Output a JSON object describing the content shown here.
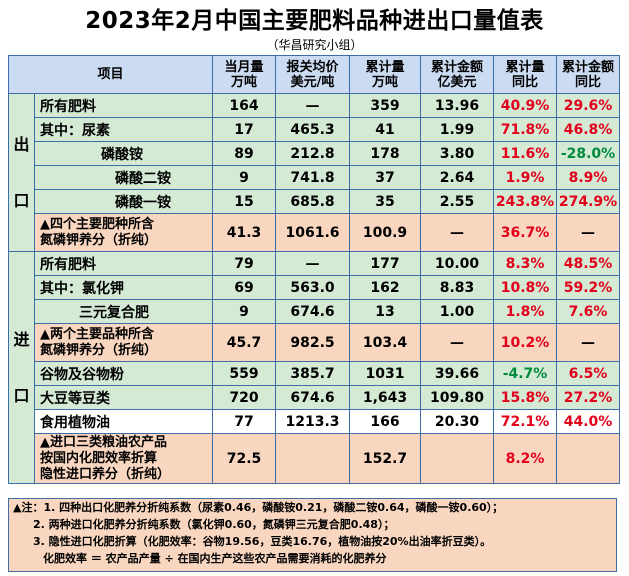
{
  "title": "2023年2月中国主要肥料品种进出口量值表",
  "subtitle": "（华昌研究小组）",
  "headers": {
    "item": "项目",
    "monthly_vol": [
      "当月量",
      "万吨"
    ],
    "price": [
      "报关均价",
      "美元/吨"
    ],
    "cum_vol": [
      "累计量",
      "万吨"
    ],
    "cum_val": [
      "累计金额",
      "亿美元"
    ],
    "cum_vol_yoy": [
      "累计量",
      "同比"
    ],
    "cum_val_yoy": [
      "累计金额",
      "同比"
    ]
  },
  "sections": {
    "export": [
      "出",
      "口"
    ],
    "import": [
      "进",
      "口"
    ]
  },
  "rows": [
    {
      "name": "所有肥料",
      "m": "164",
      "p": "—",
      "cv": "359",
      "cva": "13.96",
      "yv": "40.9%",
      "ya": "29.6%",
      "yv_color": "red",
      "ya_color": "red"
    },
    {
      "name": "其中：尿素",
      "m": "17",
      "p": "465.3",
      "cv": "41",
      "cva": "1.99",
      "yv": "71.8%",
      "ya": "46.8%",
      "yv_color": "red",
      "ya_color": "red"
    },
    {
      "name": "磷酸铵",
      "m": "89",
      "p": "212.8",
      "cv": "178",
      "cva": "3.80",
      "yv": "11.6%",
      "ya": "-28.0%",
      "yv_color": "red",
      "ya_color": "green"
    },
    {
      "name": "磷酸二铵",
      "m": "9",
      "p": "741.8",
      "cv": "37",
      "cva": "2.64",
      "yv": "1.9%",
      "ya": "8.9%",
      "yv_color": "red",
      "ya_color": "red"
    },
    {
      "name": "磷酸一铵",
      "m": "15",
      "p": "685.8",
      "cv": "35",
      "cva": "2.55",
      "yv": "243.8%",
      "ya": "274.9%",
      "yv_color": "red",
      "ya_color": "red"
    },
    {
      "name": [
        "▲四个主要肥种所含",
        "氮磷钾养分（折纯）"
      ],
      "m": "41.3",
      "p": "1061.6",
      "cv": "100.9",
      "cva": "—",
      "yv": "36.7%",
      "ya": "—",
      "yv_color": "red",
      "ya_color": "black"
    },
    {
      "name": "所有肥料",
      "m": "79",
      "p": "—",
      "cv": "177",
      "cva": "10.00",
      "yv": "8.3%",
      "ya": "48.5%",
      "yv_color": "red",
      "ya_color": "red"
    },
    {
      "name": "其中：氯化钾",
      "m": "69",
      "p": "563.0",
      "cv": "162",
      "cva": "8.83",
      "yv": "10.8%",
      "ya": "59.2%",
      "yv_color": "red",
      "ya_color": "red"
    },
    {
      "name": "三元复合肥",
      "m": "9",
      "p": "674.6",
      "cv": "13",
      "cva": "1.00",
      "yv": "1.8%",
      "ya": "7.6%",
      "yv_color": "red",
      "ya_color": "red"
    },
    {
      "name": [
        "▲两个主要品种所含",
        "氮磷钾养分（折纯）"
      ],
      "m": "45.7",
      "p": "982.5",
      "cv": "103.4",
      "cva": "—",
      "yv": "10.2%",
      "ya": "—",
      "yv_color": "red",
      "ya_color": "black"
    },
    {
      "name": "谷物及谷物粉",
      "m": "559",
      "p": "385.7",
      "cv": "1031",
      "cva": "39.66",
      "yv": "-4.7%",
      "ya": "6.5%",
      "yv_color": "green",
      "ya_color": "red"
    },
    {
      "name": "大豆等豆类",
      "m": "720",
      "p": "674.6",
      "cv": "1,643",
      "cva": "109.80",
      "yv": "15.8%",
      "ya": "27.2%",
      "yv_color": "red",
      "ya_color": "red"
    },
    {
      "name": "食用植物油",
      "m": "77",
      "p": "1213.3",
      "cv": "166",
      "cva": "20.30",
      "yv": "72.1%",
      "ya": "44.0%",
      "yv_color": "red",
      "ya_color": "red"
    },
    {
      "name": [
        "▲进口三类粮油农产品",
        "按国内化肥效率折算",
        "隐性进口养分（折纯）"
      ],
      "m": "72.5",
      "p": "",
      "cv": "152.7",
      "cva": "",
      "yv": "8.2%",
      "ya": "",
      "yv_color": "red",
      "ya_color": "black"
    }
  ],
  "notes": [
    "▲注：1. 四种出口化肥养分折纯系数（尿素0.46，磷酸铵0.21，磷酸二铵0.64，磷酸一铵0.60）；",
    "2. 两种进口化肥养分折纯系数（氯化钾0.60，氮磷钾三元复合肥0.48）；",
    "3. 隐性进口化肥折算（化肥效率：谷物19.56，豆类16.76，植物油按20%出油率折豆类）。",
    "化肥效率 ＝ 农产品产量 ÷ 在国内生产这些农产品需要消耗的化肥养分"
  ],
  "colors": {
    "green_row": "#d4ead5",
    "orange_row": "#f9d6c0",
    "header_bg": "#cbdcf2",
    "positive_text": "#e2001a",
    "negative_text": "#008a3e"
  }
}
